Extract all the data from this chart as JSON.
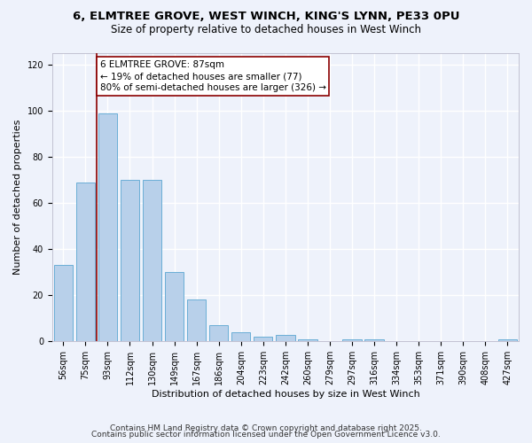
{
  "title_line1": "6, ELMTREE GROVE, WEST WINCH, KING'S LYNN, PE33 0PU",
  "title_line2": "Size of property relative to detached houses in West Winch",
  "xlabel": "Distribution of detached houses by size in West Winch",
  "ylabel": "Number of detached properties",
  "categories": [
    "56sqm",
    "75sqm",
    "93sqm",
    "112sqm",
    "130sqm",
    "149sqm",
    "167sqm",
    "186sqm",
    "204sqm",
    "223sqm",
    "242sqm",
    "260sqm",
    "279sqm",
    "297sqm",
    "316sqm",
    "334sqm",
    "353sqm",
    "371sqm",
    "390sqm",
    "408sqm",
    "427sqm"
  ],
  "values": [
    33,
    69,
    99,
    70,
    70,
    30,
    18,
    7,
    4,
    2,
    3,
    1,
    0,
    1,
    1,
    0,
    0,
    0,
    0,
    0,
    1
  ],
  "bar_color": "#b8d0ea",
  "bar_edge_color": "#6aaed6",
  "bar_width": 0.85,
  "property_line_x": 1.5,
  "property_line_color": "#8B0000",
  "annotation_line1": "6 ELMTREE GROVE: 87sqm",
  "annotation_line2": "← 19% of detached houses are smaller (77)",
  "annotation_line3": "80% of semi-detached houses are larger (326) →",
  "annotation_box_color": "#8B0000",
  "annotation_box_fill": "#ffffff",
  "ylim": [
    0,
    125
  ],
  "yticks": [
    0,
    20,
    40,
    60,
    80,
    100,
    120
  ],
  "background_color": "#eef2fb",
  "grid_color": "#ffffff",
  "footer_line1": "Contains HM Land Registry data © Crown copyright and database right 2025.",
  "footer_line2": "Contains public sector information licensed under the Open Government Licence v3.0.",
  "title_fontsize": 9.5,
  "subtitle_fontsize": 8.5,
  "axis_label_fontsize": 8,
  "tick_fontsize": 7,
  "annotation_fontsize": 7.5,
  "footer_fontsize": 6.5
}
